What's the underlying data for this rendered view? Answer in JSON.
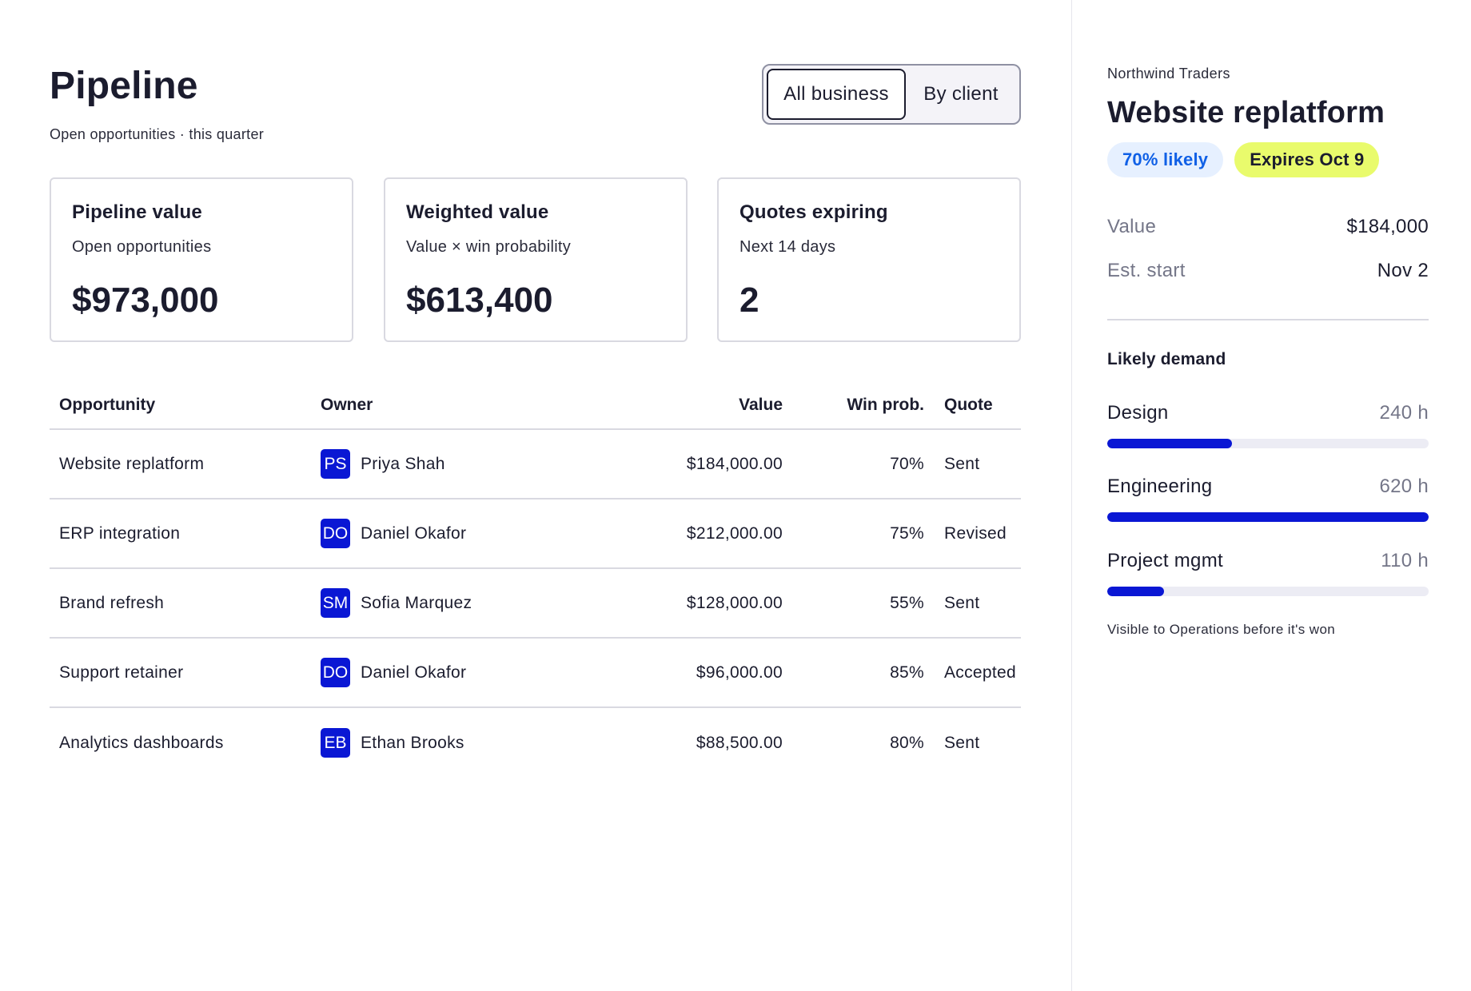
{
  "header": {
    "title": "Pipeline",
    "subtitle": "Open opportunities · this quarter",
    "view_toggle": {
      "all_business": "All business",
      "by_client": "By client",
      "selected": "All business"
    }
  },
  "cards": [
    {
      "title": "Pipeline value",
      "subtitle": "Open opportunities",
      "value": "$973,000"
    },
    {
      "title": "Weighted value",
      "subtitle": "Value × win probability",
      "value": "$613,400"
    },
    {
      "title": "Quotes expiring",
      "subtitle": "Next 14 days",
      "value": "2"
    }
  ],
  "table": {
    "headers": {
      "opportunity": "Opportunity",
      "owner": "Owner",
      "value": "Value",
      "win_prob": "Win prob.",
      "quote": "Quote"
    },
    "rows": [
      {
        "opportunity": "Website replatform",
        "initials": "PS",
        "owner": "Priya Shah",
        "value": "$184,000.00",
        "win_prob": "70%",
        "quote": "Sent"
      },
      {
        "opportunity": "ERP integration",
        "initials": "DO",
        "owner": "Daniel Okafor",
        "value": "$212,000.00",
        "win_prob": "75%",
        "quote": "Revised"
      },
      {
        "opportunity": "Brand refresh",
        "initials": "SM",
        "owner": "Sofia Marquez",
        "value": "$128,000.00",
        "win_prob": "55%",
        "quote": "Sent"
      },
      {
        "opportunity": "Support retainer",
        "initials": "DO",
        "owner": "Daniel Okafor",
        "value": "$96,000.00",
        "win_prob": "85%",
        "quote": "Accepted"
      },
      {
        "opportunity": "Analytics dashboards",
        "initials": "EB",
        "owner": "Ethan Brooks",
        "value": "$88,500.00",
        "win_prob": "80%",
        "quote": "Sent"
      }
    ]
  },
  "detail": {
    "client": "Northwind Traders",
    "title": "Website replatform",
    "probability_badge": "70% likely",
    "expiry_badge": "Expires Oct 9",
    "value_label": "Value",
    "value": "$184,000",
    "start_label": "Est. start",
    "start": "Nov 2",
    "demand_title": "Likely demand",
    "demand": [
      {
        "label": "Design",
        "hours": "240 h",
        "fraction": 0.387
      },
      {
        "label": "Engineering",
        "hours": "620 h",
        "fraction": 1.0
      },
      {
        "label": "Project mgmt",
        "hours": "110 h",
        "fraction": 0.177
      }
    ],
    "note": "Visible to Operations before it's won"
  },
  "colors": {
    "accent": "#0a17d4",
    "probability_badge_bg": "#e6f0ff",
    "probability_badge_text": "#1060e6",
    "expiry_badge_bg": "#e9fb6c"
  }
}
